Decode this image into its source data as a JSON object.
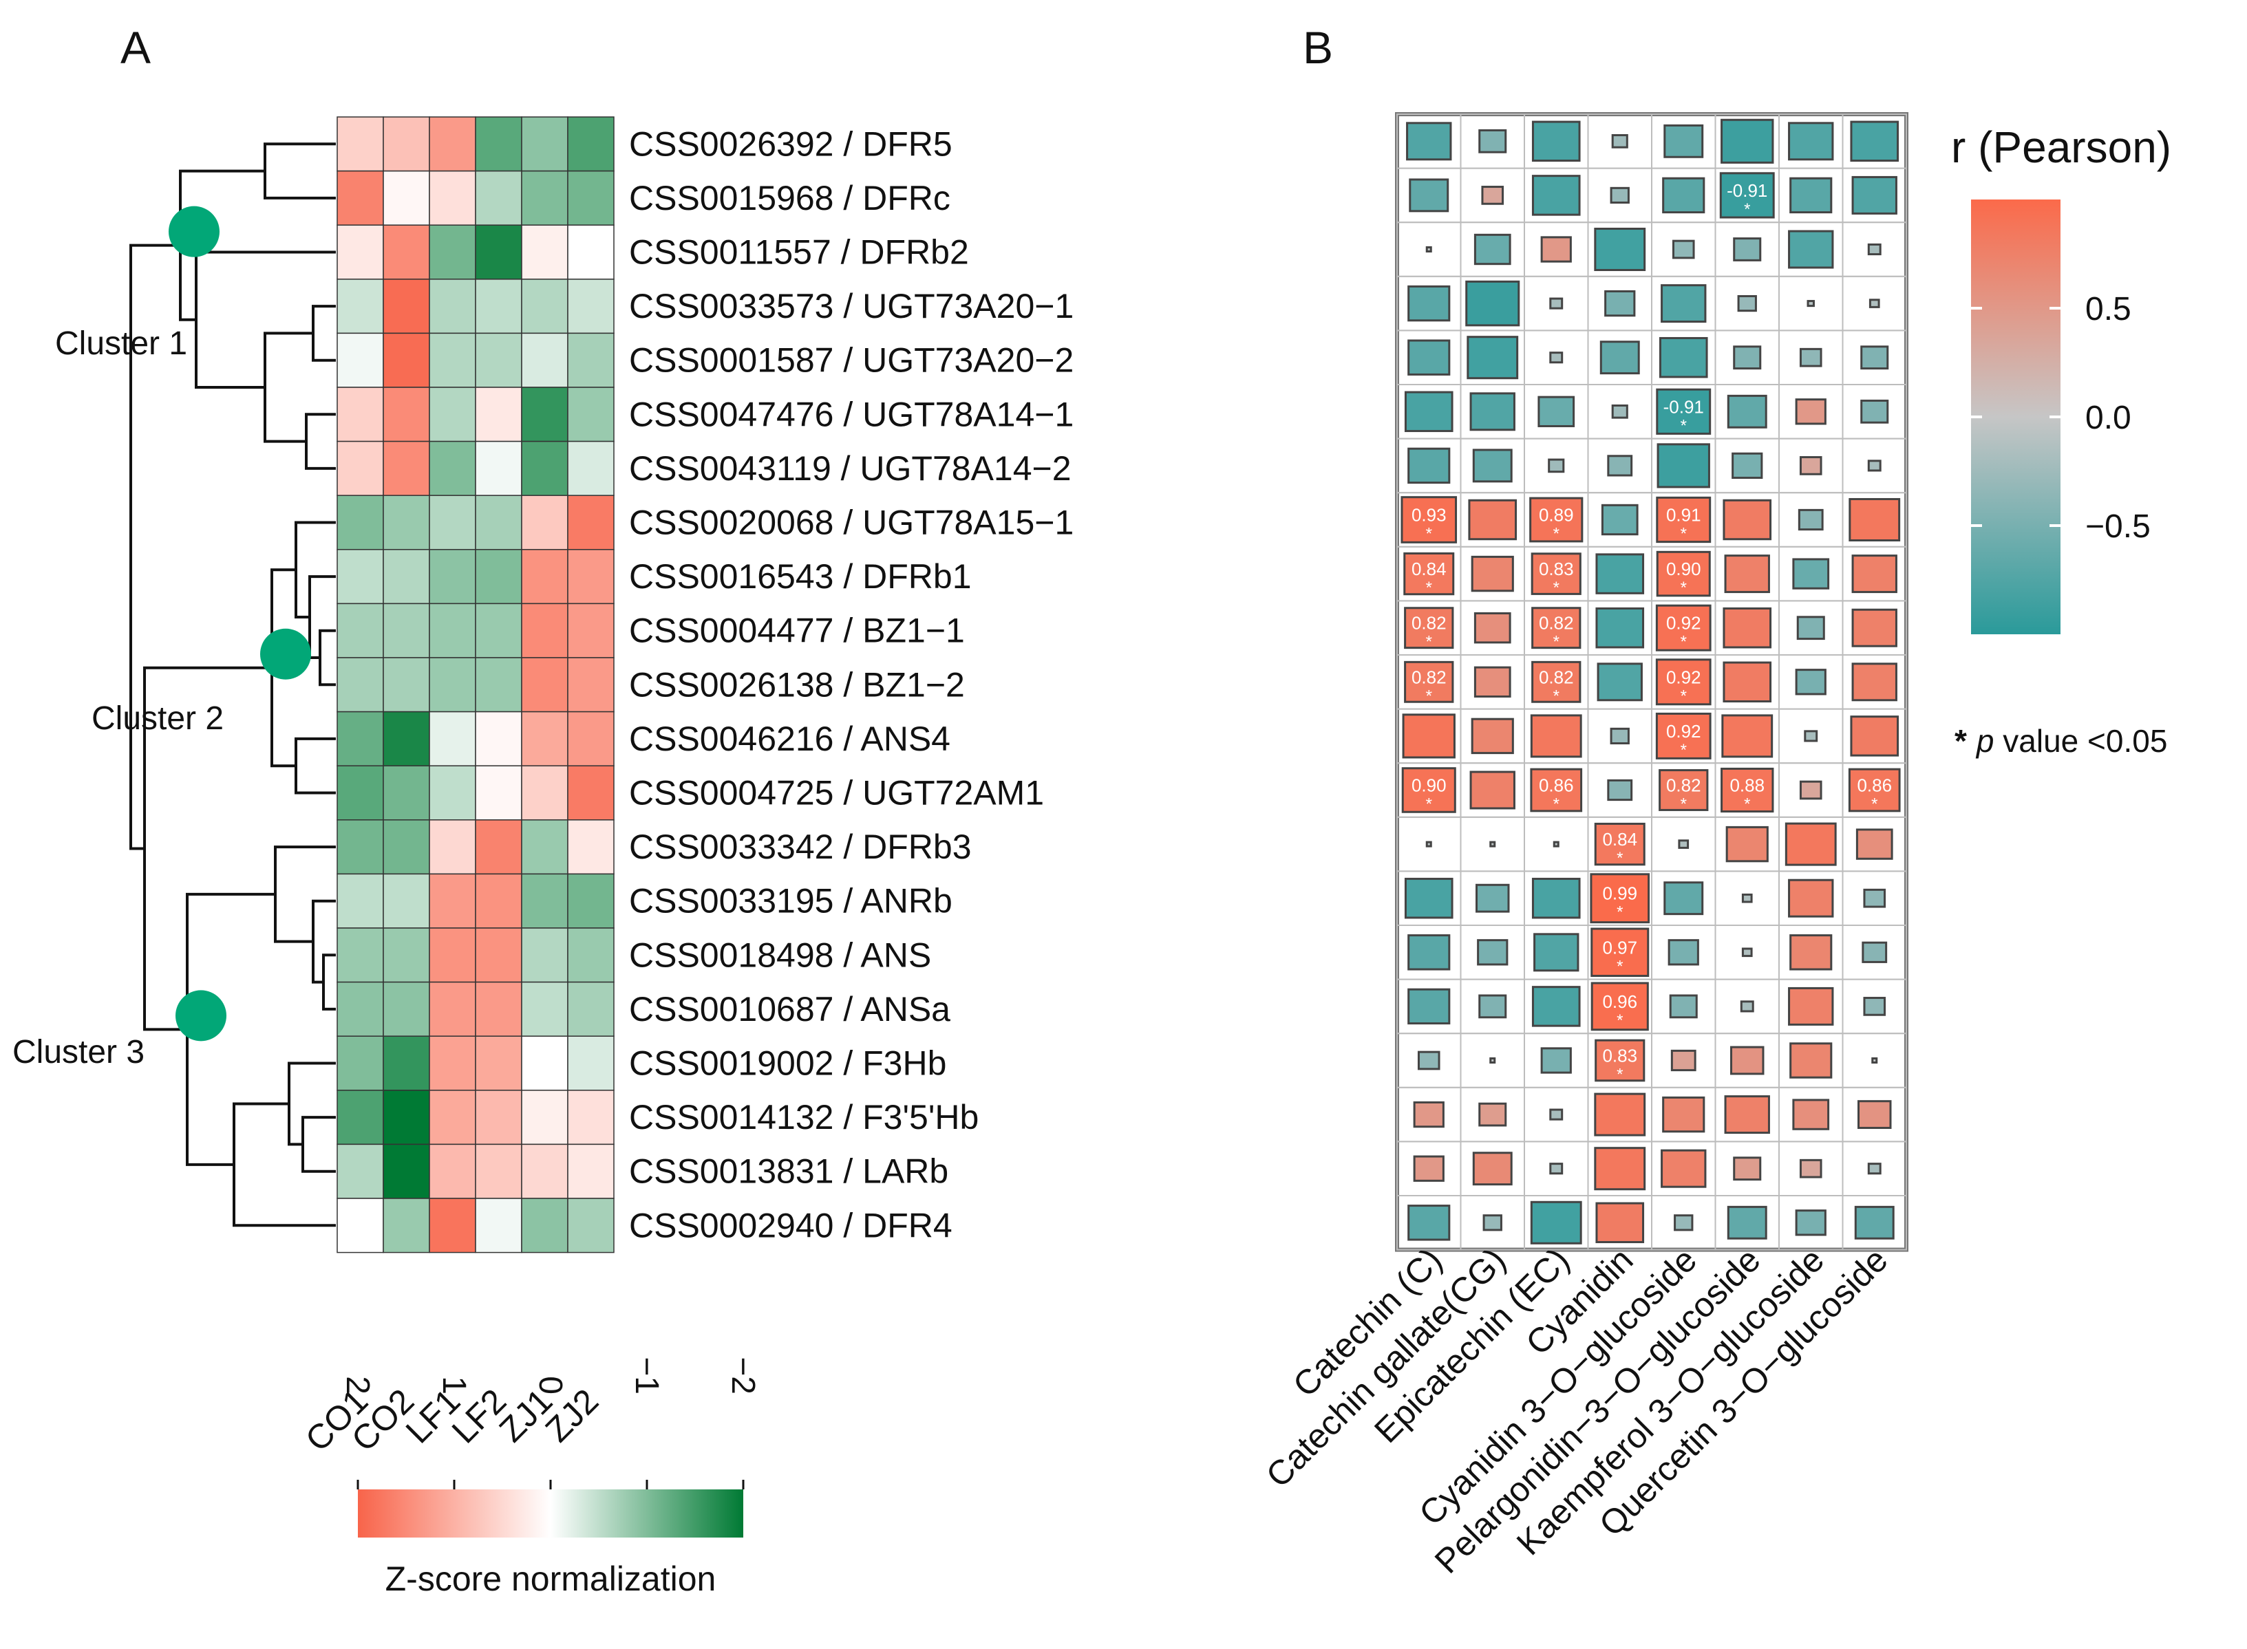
{
  "panels": {
    "a": "A",
    "b": "B"
  },
  "chart_data": [
    {
      "type": "heatmap",
      "panel": "A",
      "columns": [
        "CO1",
        "CO2",
        "LF1",
        "LF2",
        "ZJ1",
        "ZJ2"
      ],
      "rows": [
        "CSS0026392 / DFR5",
        "CSS0015968 / DFRc",
        "CSS0011557 / DFRb2",
        "CSS0033573 / UGT73A20−1",
        "CSS0001587 / UGT73A20−2",
        "CSS0047476 / UGT78A14−1",
        "CSS0043119 / UGT78A14−2",
        "CSS0020068 / UGT78A15−1",
        "CSS0016543 / DFRb1",
        "CSS0004477 / BZ1−1",
        "CSS0026138 / BZ1−2",
        "CSS0046216 / ANS4",
        "CSS0004725 / UGT72AM1",
        "CSS0033342 / DFRb3",
        "CSS0033195 / ANRb",
        "CSS0018498 / ANS",
        "CSS0010687 / ANSa",
        "CSS0019002 / F3Hb",
        "CSS0014132 / F3'5'Hb",
        "CSS0013831 / LARb",
        "CSS0002940 / DFR4"
      ],
      "values": [
        [
          0.6,
          0.8,
          1.3,
          -1.3,
          -0.9,
          -1.4
        ],
        [
          1.6,
          0.1,
          0.4,
          -0.6,
          -1.0,
          -1.1
        ],
        [
          0.3,
          1.5,
          -1.1,
          -1.8,
          0.2,
          0.0
        ],
        [
          -0.4,
          1.9,
          -0.6,
          -0.5,
          -0.6,
          -0.4
        ],
        [
          -0.1,
          1.9,
          -0.6,
          -0.6,
          -0.3,
          -0.7
        ],
        [
          0.6,
          1.5,
          -0.6,
          0.3,
          -1.6,
          -0.8
        ],
        [
          0.6,
          1.5,
          -1.0,
          -0.1,
          -1.4,
          -0.3
        ],
        [
          -1.0,
          -0.8,
          -0.6,
          -0.7,
          0.7,
          1.7
        ],
        [
          -0.5,
          -0.6,
          -0.9,
          -1.0,
          1.4,
          1.3
        ],
        [
          -0.7,
          -0.7,
          -0.8,
          -0.8,
          1.5,
          1.3
        ],
        [
          -0.7,
          -0.7,
          -0.8,
          -0.8,
          1.5,
          1.3
        ],
        [
          -1.2,
          -1.8,
          -0.2,
          0.1,
          1.1,
          1.3
        ],
        [
          -1.3,
          -1.1,
          -0.5,
          0.1,
          0.6,
          1.7
        ],
        [
          -1.1,
          -1.1,
          0.5,
          1.6,
          -0.8,
          0.3
        ],
        [
          -0.5,
          -0.5,
          1.3,
          1.4,
          -1.0,
          -1.1
        ],
        [
          -0.8,
          -0.8,
          1.4,
          1.4,
          -0.6,
          -0.8
        ],
        [
          -0.9,
          -0.9,
          1.3,
          1.3,
          -0.5,
          -0.7
        ],
        [
          -1.0,
          -1.6,
          1.2,
          1.1,
          0.0,
          -0.3
        ],
        [
          -1.4,
          -2.0,
          1.1,
          0.9,
          0.2,
          0.4
        ],
        [
          -0.6,
          -2.2,
          0.9,
          0.7,
          0.5,
          0.3
        ],
        [
          0.0,
          -0.8,
          1.8,
          -0.1,
          -0.9,
          -0.7
        ]
      ],
      "clusters": [
        "Cluster 1",
        "Cluster 2",
        "Cluster 3"
      ],
      "legend": {
        "title": "Z-score normalization",
        "ticks": [
          "2",
          "1",
          "0",
          "−1",
          "−2"
        ],
        "range": [
          -2,
          2
        ],
        "colors": {
          "high": "#f8644a",
          "mid": "#ffffff",
          "low": "#007a34"
        }
      }
    },
    {
      "type": "heatmap",
      "panel": "B",
      "subtype": "correlation",
      "metric": "r (Pearson)",
      "columns": [
        "Catechin (C)",
        "Catechin gallate(CG)",
        "Epicatechin (EC)",
        "Cyanidin",
        "Cyanidin 3−O−glucoside",
        "Pelargonidin−3−O−glucoside",
        "Kaempferol 3−O−glucoside",
        "Quercetin 3−O−glucoside"
      ],
      "rows_same_as_panel": "A",
      "r": [
        [
          -0.75,
          -0.45,
          -0.8,
          -0.25,
          -0.65,
          -0.88,
          -0.75,
          -0.8
        ],
        [
          -0.65,
          0.35,
          -0.8,
          -0.3,
          -0.7,
          -0.91,
          -0.7,
          -0.75
        ],
        [
          -0.05,
          -0.6,
          0.5,
          -0.85,
          -0.35,
          -0.45,
          -0.75,
          -0.2
        ],
        [
          -0.7,
          -0.9,
          -0.2,
          -0.5,
          -0.75,
          -0.3,
          -0.1,
          -0.15
        ],
        [
          -0.7,
          -0.85,
          -0.2,
          -0.65,
          -0.8,
          -0.45,
          -0.35,
          -0.45
        ],
        [
          -0.8,
          -0.75,
          -0.6,
          -0.25,
          -0.91,
          -0.65,
          0.5,
          -0.45
        ],
        [
          -0.7,
          -0.65,
          -0.25,
          -0.4,
          -0.88,
          -0.5,
          0.35,
          -0.2
        ],
        [
          0.93,
          0.8,
          0.89,
          -0.6,
          0.91,
          0.8,
          -0.4,
          0.85
        ],
        [
          0.84,
          0.7,
          0.83,
          -0.8,
          0.9,
          0.75,
          -0.6,
          0.75
        ],
        [
          0.82,
          0.6,
          0.82,
          -0.8,
          0.92,
          0.8,
          -0.45,
          0.75
        ],
        [
          0.82,
          0.6,
          0.82,
          -0.75,
          0.92,
          0.8,
          -0.5,
          0.75
        ],
        [
          0.88,
          0.7,
          0.85,
          -0.3,
          0.92,
          0.85,
          -0.2,
          0.8
        ],
        [
          0.9,
          0.75,
          0.86,
          -0.4,
          0.82,
          0.88,
          0.35,
          0.86
        ],
        [
          -0.07,
          -0.07,
          -0.07,
          0.84,
          -0.15,
          0.7,
          0.85,
          0.6
        ],
        [
          -0.8,
          -0.55,
          -0.8,
          0.99,
          -0.65,
          -0.15,
          0.75,
          -0.35
        ],
        [
          -0.7,
          -0.5,
          -0.75,
          0.97,
          -0.5,
          -0.15,
          0.7,
          -0.4
        ],
        [
          -0.7,
          -0.45,
          -0.8,
          0.96,
          -0.45,
          -0.2,
          0.75,
          -0.35
        ],
        [
          -0.35,
          -0.03,
          -0.5,
          0.83,
          0.4,
          0.55,
          0.7,
          -0.03
        ],
        [
          0.5,
          0.45,
          -0.2,
          0.85,
          0.7,
          0.75,
          0.6,
          0.55
        ],
        [
          0.5,
          0.65,
          -0.2,
          0.85,
          0.75,
          0.45,
          0.35,
          -0.2
        ],
        [
          -0.7,
          -0.3,
          -0.85,
          0.8,
          -0.3,
          -0.65,
          -0.5,
          -0.65
        ]
      ],
      "labels": [
        {
          "row": 1,
          "col": 5,
          "text": "-0.91",
          "star": "*"
        },
        {
          "row": 5,
          "col": 4,
          "text": "-0.91",
          "star": "*"
        },
        {
          "row": 7,
          "col": 0,
          "text": "0.93",
          "star": "*"
        },
        {
          "row": 7,
          "col": 2,
          "text": "0.89",
          "star": "*"
        },
        {
          "row": 7,
          "col": 4,
          "text": "0.91",
          "star": "*"
        },
        {
          "row": 8,
          "col": 0,
          "text": "0.84",
          "star": "*"
        },
        {
          "row": 8,
          "col": 2,
          "text": "0.83",
          "star": "*"
        },
        {
          "row": 8,
          "col": 4,
          "text": "0.90",
          "star": "*"
        },
        {
          "row": 9,
          "col": 0,
          "text": "0.82",
          "star": "*"
        },
        {
          "row": 9,
          "col": 2,
          "text": "0.82",
          "star": "*"
        },
        {
          "row": 9,
          "col": 4,
          "text": "0.92",
          "star": "*"
        },
        {
          "row": 10,
          "col": 0,
          "text": "0.82",
          "star": "*"
        },
        {
          "row": 10,
          "col": 2,
          "text": "0.82",
          "star": "*"
        },
        {
          "row": 10,
          "col": 4,
          "text": "0.92",
          "star": "*"
        },
        {
          "row": 11,
          "col": 4,
          "text": "0.92",
          "star": "*"
        },
        {
          "row": 12,
          "col": 0,
          "text": "0.90",
          "star": "*"
        },
        {
          "row": 12,
          "col": 2,
          "text": "0.86",
          "star": "*"
        },
        {
          "row": 12,
          "col": 4,
          "text": "0.82",
          "star": "*"
        },
        {
          "row": 12,
          "col": 5,
          "text": "0.88",
          "star": "*"
        },
        {
          "row": 12,
          "col": 7,
          "text": "0.86",
          "star": "*"
        },
        {
          "row": 13,
          "col": 3,
          "text": "0.84",
          "star": "*"
        },
        {
          "row": 14,
          "col": 3,
          "text": "0.99",
          "star": "*"
        },
        {
          "row": 15,
          "col": 3,
          "text": "0.97",
          "star": "*"
        },
        {
          "row": 16,
          "col": 3,
          "text": "0.96",
          "star": "*"
        },
        {
          "row": 17,
          "col": 3,
          "text": "0.83",
          "star": "*"
        }
      ],
      "legend": {
        "title": "r (Pearson)",
        "ticks": [
          "0.5",
          "0.0",
          "−0.5"
        ],
        "range": [
          -1,
          1
        ],
        "colors": {
          "high": "#fb6a4a",
          "mid": "#c6c6c6",
          "low": "#2a9a9a"
        }
      },
      "p_note": {
        "star": "*",
        "p": "p",
        "text": " value <0.05"
      }
    }
  ]
}
